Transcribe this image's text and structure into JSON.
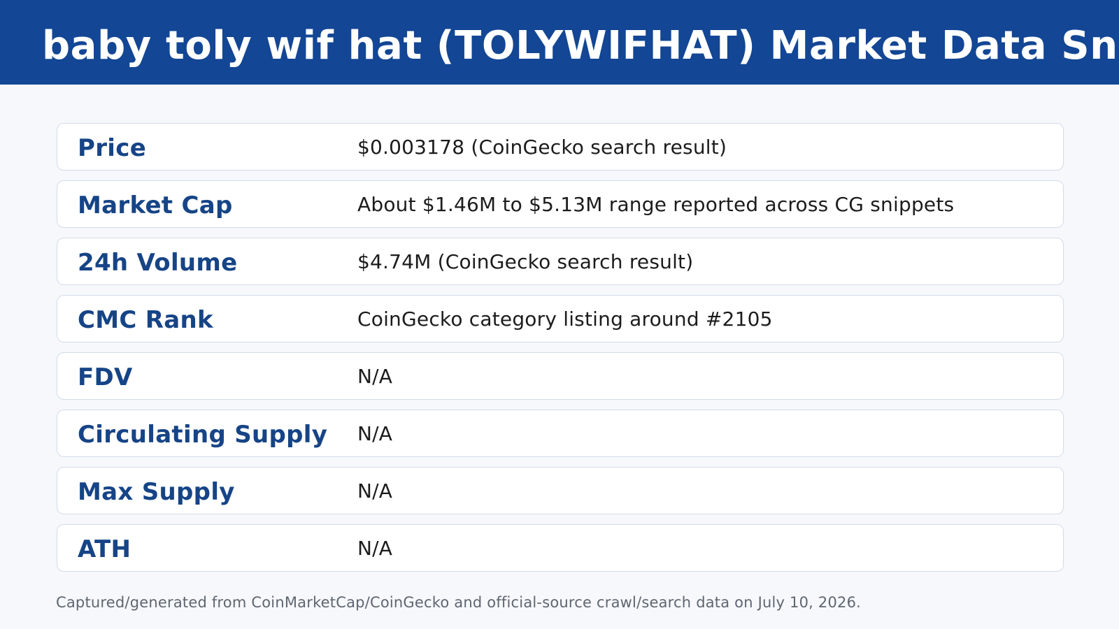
{
  "header": {
    "title": "baby toly wif hat (TOLYWIFHAT) Market Data Snapshot"
  },
  "rows": [
    {
      "label": "Price",
      "value": "$0.003178 (CoinGecko search result)"
    },
    {
      "label": "Market Cap",
      "value": "About $1.46M to $5.13M range reported across CG snippets"
    },
    {
      "label": "24h Volume",
      "value": "$4.74M (CoinGecko search result)"
    },
    {
      "label": "CMC Rank",
      "value": "CoinGecko category listing around #2105"
    },
    {
      "label": "FDV",
      "value": "N/A"
    },
    {
      "label": "Circulating Supply",
      "value": "N/A"
    },
    {
      "label": "Max Supply",
      "value": "N/A"
    },
    {
      "label": "ATH",
      "value": "N/A"
    }
  ],
  "footer": {
    "note": "Captured/generated from CoinMarketCap/CoinGecko and official-source crawl/search data on July 10, 2026."
  },
  "colors": {
    "header_background": "#134694",
    "label_text": "#164486",
    "page_background": "#f6f8fc"
  }
}
